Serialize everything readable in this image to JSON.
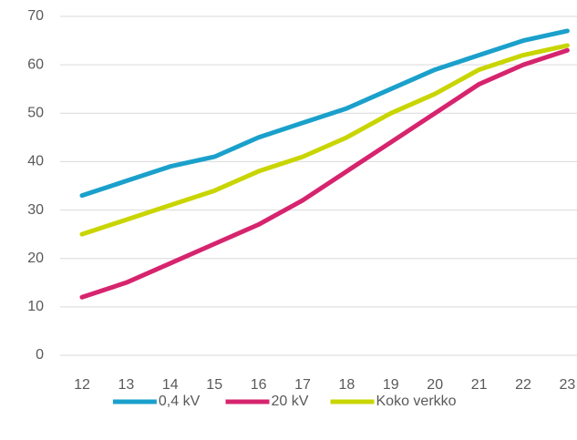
{
  "chart_data": {
    "type": "line",
    "categories": [
      "12",
      "13",
      "14",
      "15",
      "16",
      "17",
      "18",
      "19",
      "20",
      "21",
      "22",
      "23"
    ],
    "series": [
      {
        "name": "0,4 kV",
        "color": "#1aa0cb",
        "values": [
          33,
          36,
          39,
          41,
          45,
          48,
          51,
          55,
          59,
          62,
          65,
          67
        ]
      },
      {
        "name": "20 kV",
        "color": "#d6246e",
        "values": [
          12,
          15,
          19,
          23,
          27,
          32,
          38,
          44,
          50,
          56,
          60,
          63
        ]
      },
      {
        "name": "Koko verkko",
        "color": "#c9d500",
        "values": [
          25,
          28,
          31,
          34,
          38,
          41,
          45,
          50,
          54,
          59,
          62,
          64
        ]
      }
    ],
    "ylim": [
      0,
      70
    ],
    "yticks": [
      0,
      10,
      20,
      30,
      40,
      50,
      60,
      70
    ],
    "grid": true,
    "legend": "bottom"
  }
}
